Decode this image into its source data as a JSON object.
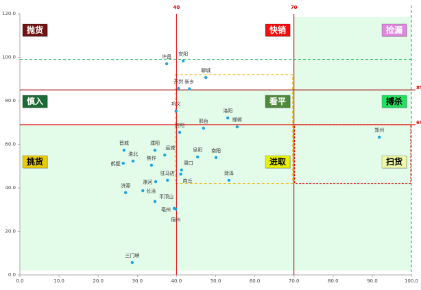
{
  "chart_data": {
    "type": "scatter",
    "title": "",
    "xlabel": "",
    "ylabel": "",
    "xlim": [
      0,
      100
    ],
    "ylim": [
      0,
      120
    ],
    "xticks": [
      "0.0",
      "10.0",
      "20.0",
      "30.0",
      "40.0",
      "50.0",
      "60.0",
      "70.0",
      "80.0",
      "90.0",
      "100.0"
    ],
    "yticks": [
      "0.0",
      "20.0",
      "40.0",
      "60.0",
      "80.0",
      "100.0",
      "120.0"
    ],
    "grid": false,
    "point_color": "#1aa7e0",
    "thresholds": {
      "x_lines": [
        {
          "value": 40,
          "label": "40"
        },
        {
          "value": 70,
          "label": "70"
        }
      ],
      "y_lines": [
        {
          "value": 85,
          "label": "85"
        },
        {
          "value": 69,
          "label": "69"
        }
      ],
      "green_dashed_x": 100,
      "green_dashed_y": 99,
      "orange_box": {
        "x": [
          40,
          70
        ],
        "y": [
          42,
          92
        ]
      },
      "red_box": {
        "x": [
          70,
          100
        ],
        "y": [
          42,
          69
        ]
      }
    },
    "quadrants": [
      {
        "label": "抛货",
        "color": "#6e1212",
        "text_color": "#ffffff"
      },
      {
        "label": "快销",
        "color": "#f01010",
        "text_color": "#ffffff"
      },
      {
        "label": "捡漏",
        "color": "#e088e0",
        "text_color": "#ffffff"
      },
      {
        "label": "慎入",
        "color": "#1c6a34",
        "text_color": "#ffffff"
      },
      {
        "label": "看平",
        "color": "#4f8a3c",
        "text_color": "#ffffff"
      },
      {
        "label": "搏杀",
        "color": "#22e060",
        "text_color": "#000000"
      },
      {
        "label": "挑货",
        "color": "#e8cc00",
        "text_color": "#000000"
      },
      {
        "label": "进取",
        "color": "#e8f000",
        "text_color": "#000000"
      },
      {
        "label": "扫货",
        "color": "#eef8a8",
        "text_color": "#000000"
      }
    ],
    "points": [
      {
        "name": "许昌",
        "x": 37.5,
        "y": 97.0
      },
      {
        "name": "安阳",
        "x": 41.7,
        "y": 98.3
      },
      {
        "name": "聊城",
        "x": 47.5,
        "y": 90.7
      },
      {
        "name": "开封",
        "x": 40.5,
        "y": 85.7
      },
      {
        "name": "新乡",
        "x": 43.3,
        "y": 85.5
      },
      {
        "name": "巩义",
        "x": 39.9,
        "y": 75.3
      },
      {
        "name": "洛阳",
        "x": 53.1,
        "y": 72.1
      },
      {
        "name": "邯郸",
        "x": 55.5,
        "y": 68.0
      },
      {
        "name": "邢台",
        "x": 46.9,
        "y": 67.4
      },
      {
        "name": "信阳",
        "x": 40.8,
        "y": 65.5
      },
      {
        "name": "晋城",
        "x": 26.6,
        "y": 57.3
      },
      {
        "name": "濮阳",
        "x": 34.5,
        "y": 57.3
      },
      {
        "name": "运城",
        "x": 37.0,
        "y": 55.1
      },
      {
        "name": "淮北",
        "x": 28.9,
        "y": 52.3
      },
      {
        "name": "鹤壁",
        "x": 26.4,
        "y": 51.3
      },
      {
        "name": "焦作",
        "x": 33.6,
        "y": 50.4
      },
      {
        "name": "阜阳",
        "x": 45.4,
        "y": 54.2
      },
      {
        "name": "南阳",
        "x": 50.1,
        "y": 53.9
      },
      {
        "name": "周口",
        "x": 41.3,
        "y": 48.2
      },
      {
        "name": "商丘",
        "x": 41.1,
        "y": 46.3
      },
      {
        "name": "驻马店",
        "x": 37.7,
        "y": 43.5
      },
      {
        "name": "漯河",
        "x": 34.7,
        "y": 42.8
      },
      {
        "name": "菏泽",
        "x": 53.4,
        "y": 43.5
      },
      {
        "name": "长治",
        "x": 31.4,
        "y": 38.7
      },
      {
        "name": "济源",
        "x": 27.0,
        "y": 37.8
      },
      {
        "name": "平顶山",
        "x": 34.5,
        "y": 33.7
      },
      {
        "name": "亳州",
        "x": 39.4,
        "y": 30.6
      },
      {
        "name": "宿州",
        "x": 39.8,
        "y": 30.3
      },
      {
        "name": "三门峡",
        "x": 28.7,
        "y": 5.7
      },
      {
        "name": "郑州",
        "x": 91.8,
        "y": 63.3
      }
    ]
  }
}
